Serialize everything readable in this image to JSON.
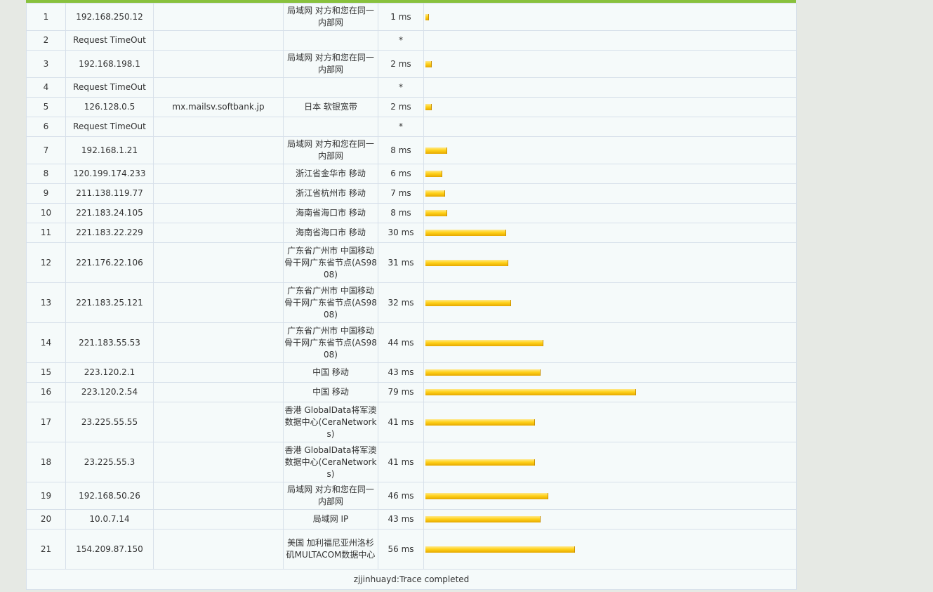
{
  "hops": [
    {
      "no": "1",
      "ip": "192.168.250.12",
      "host": "",
      "loc": "局域网 对方和您在同一内部网",
      "time": "1 ms",
      "ms": 1
    },
    {
      "no": "2",
      "ip": "Request TimeOut",
      "host": "",
      "loc": "",
      "time": "*",
      "ms": 0
    },
    {
      "no": "3",
      "ip": "192.168.198.1",
      "host": "",
      "loc": "局域网 对方和您在同一内部网",
      "time": "2 ms",
      "ms": 2
    },
    {
      "no": "4",
      "ip": "Request TimeOut",
      "host": "",
      "loc": "",
      "time": "*",
      "ms": 0
    },
    {
      "no": "5",
      "ip": "126.128.0.5",
      "host": "mx.mailsv.softbank.jp",
      "loc": "日本 软银宽带",
      "time": "2 ms",
      "ms": 2
    },
    {
      "no": "6",
      "ip": "Request TimeOut",
      "host": "",
      "loc": "",
      "time": "*",
      "ms": 0
    },
    {
      "no": "7",
      "ip": "192.168.1.21",
      "host": "",
      "loc": "局域网 对方和您在同一内部网",
      "time": "8 ms",
      "ms": 8
    },
    {
      "no": "8",
      "ip": "120.199.174.233",
      "host": "",
      "loc": "浙江省金华市 移动",
      "time": "6 ms",
      "ms": 6
    },
    {
      "no": "9",
      "ip": "211.138.119.77",
      "host": "",
      "loc": "浙江省杭州市 移动",
      "time": "7 ms",
      "ms": 7
    },
    {
      "no": "10",
      "ip": "221.183.24.105",
      "host": "",
      "loc": "海南省海口市 移动",
      "time": "8 ms",
      "ms": 8
    },
    {
      "no": "11",
      "ip": "221.183.22.229",
      "host": "",
      "loc": "海南省海口市 移动",
      "time": "30 ms",
      "ms": 30
    },
    {
      "no": "12",
      "ip": "221.176.22.106",
      "host": "",
      "loc": "广东省广州市 中国移动骨干网广东省节点(AS9808)",
      "time": "31 ms",
      "ms": 31
    },
    {
      "no": "13",
      "ip": "221.183.25.121",
      "host": "",
      "loc": "广东省广州市 中国移动骨干网广东省节点(AS9808)",
      "time": "32 ms",
      "ms": 32
    },
    {
      "no": "14",
      "ip": "221.183.55.53",
      "host": "",
      "loc": "广东省广州市 中国移动骨干网广东省节点(AS9808)",
      "time": "44 ms",
      "ms": 44
    },
    {
      "no": "15",
      "ip": "223.120.2.1",
      "host": "",
      "loc": "中国 移动",
      "time": "43 ms",
      "ms": 43
    },
    {
      "no": "16",
      "ip": "223.120.2.54",
      "host": "",
      "loc": "中国 移动",
      "time": "79 ms",
      "ms": 79
    },
    {
      "no": "17",
      "ip": "23.225.55.55",
      "host": "",
      "loc": "香港 GlobalData将军澳数据中心(CeraNetworks)",
      "time": "41 ms",
      "ms": 41
    },
    {
      "no": "18",
      "ip": "23.225.55.3",
      "host": "",
      "loc": "香港 GlobalData将军澳数据中心(CeraNetworks)",
      "time": "41 ms",
      "ms": 41
    },
    {
      "no": "19",
      "ip": "192.168.50.26",
      "host": "",
      "loc": "局域网 对方和您在同一内部网",
      "time": "46 ms",
      "ms": 46
    },
    {
      "no": "20",
      "ip": "10.0.7.14",
      "host": "",
      "loc": "局域网 IP",
      "time": "43 ms",
      "ms": 43
    },
    {
      "no": "21",
      "ip": "154.209.87.150",
      "host": "",
      "loc": "美国 加利福尼亚州洛杉矶MULTACOM数据中心",
      "time": "56 ms",
      "ms": 56
    }
  ],
  "footer": "zjjinhuayd:Trace completed",
  "colors": {
    "bar": "#ffd21a",
    "topbar": "#88c13d",
    "border": "#d7e0ea"
  }
}
